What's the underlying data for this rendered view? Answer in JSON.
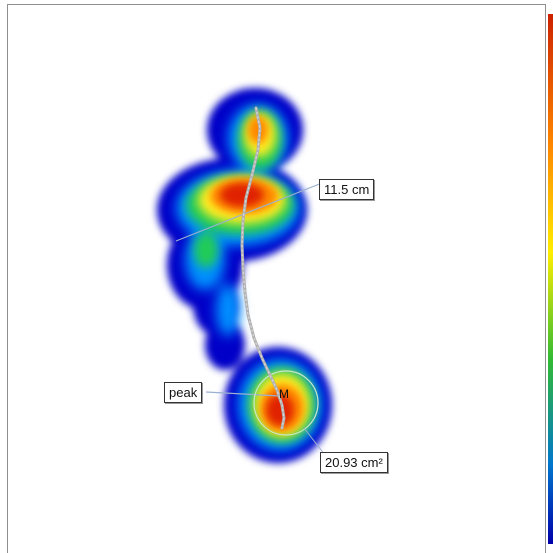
{
  "measurements": {
    "width_label": "11.5 cm",
    "peak_label": "peak",
    "peak_marker": "M",
    "area_label": "20.93 cm²"
  },
  "colors": {
    "panel_border": "#8f8f8f",
    "background": "#ffffff",
    "scale_top": "#cc2200",
    "scale_mid": "#ffee00",
    "scale_low": "#22aa22",
    "scale_bottom": "#0000aa",
    "trajectory": "#b0b0b0",
    "guide_line": "#9ab0d0"
  },
  "icons": {
    "pressure_map": "footprint-heatmap-icon",
    "trajectory": "center-of-pressure-path-icon"
  }
}
